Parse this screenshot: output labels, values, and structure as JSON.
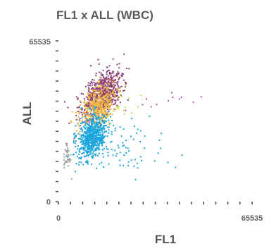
{
  "chart_data": {
    "type": "scatter",
    "title": "FL1 x ALL (WBC)",
    "xlabel": "FL1",
    "ylabel": "ALL",
    "xlim": [
      0,
      65535
    ],
    "ylim": [
      0,
      65535
    ],
    "x_tick_labels": [
      "0",
      "65535"
    ],
    "y_tick_labels": [
      "0",
      "65535"
    ],
    "grid": false,
    "legend": "none",
    "clusters": [
      {
        "color": "#8a3f7a",
        "count": 700,
        "center": [
          14500,
          44000
        ],
        "spread": [
          2900,
          5200
        ],
        "slope": 0.9
      },
      {
        "color": "#f0b440",
        "count": 450,
        "center": [
          13200,
          39000
        ],
        "spread": [
          2600,
          4600
        ],
        "slope": 0.8
      },
      {
        "color": "#1aa6dc",
        "count": 650,
        "center": [
          11200,
          26500
        ],
        "spread": [
          2500,
          4200
        ],
        "slope": 0.4
      },
      {
        "color": "#a0a0a0",
        "count": 45,
        "center": [
          2800,
          19000
        ],
        "spread": [
          700,
          2800
        ],
        "slope": 0.0
      },
      {
        "color": "#1aa6dc",
        "count": 70,
        "center": [
          23000,
          22000
        ],
        "spread": [
          7500,
          5500
        ],
        "slope": 0.0
      },
      {
        "color": "#c8d84a",
        "count": 25,
        "center": [
          20000,
          40000
        ],
        "spread": [
          5000,
          6000
        ],
        "slope": 0.0
      },
      {
        "color": "#b04fa0",
        "count": 12,
        "center": [
          38000,
          40500
        ],
        "spread": [
          6500,
          2000
        ],
        "slope": 0.0
      }
    ]
  }
}
